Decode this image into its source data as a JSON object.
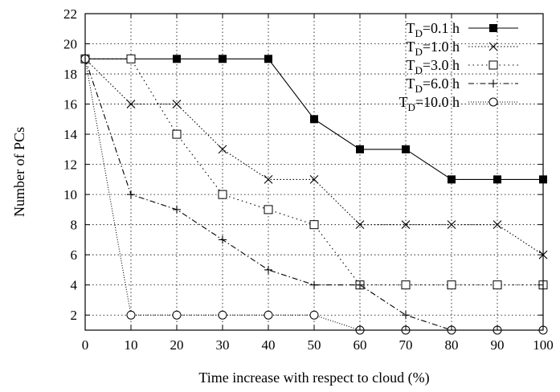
{
  "chart_data": {
    "type": "line",
    "xlabel": "Time increase with respect to cloud (%)",
    "ylabel": "Number of PCs",
    "x": [
      0,
      10,
      20,
      30,
      40,
      50,
      60,
      70,
      80,
      90,
      100
    ],
    "xticks": [
      "0",
      "10",
      "20",
      "30",
      "40",
      "50",
      "60",
      "70",
      "80",
      "90",
      "100"
    ],
    "yticks": [
      "2",
      "4",
      "6",
      "8",
      "10",
      "12",
      "14",
      "16",
      "18",
      "20",
      "22"
    ],
    "xlim": [
      0,
      100
    ],
    "ylim": [
      1,
      22
    ],
    "grid": true,
    "legend_position": "top-right",
    "series": [
      {
        "label_main": "T",
        "label_sub": "D",
        "label_rest": "=0.1 h",
        "marker": "filled-square",
        "dash": "solid",
        "values": [
          19,
          19,
          19,
          19,
          19,
          15,
          13,
          13,
          11,
          11,
          11
        ]
      },
      {
        "label_main": "T",
        "label_sub": "D",
        "label_rest": "=1.0 h",
        "marker": "x",
        "dash": "dotted",
        "values": [
          19,
          16,
          16,
          13,
          11,
          11,
          8,
          8,
          8,
          8,
          6
        ]
      },
      {
        "label_main": "T",
        "label_sub": "D",
        "label_rest": "=3.0 h",
        "marker": "open-square",
        "dash": "dotted-sparse",
        "values": [
          19,
          19,
          14,
          10,
          9,
          8,
          4,
          4,
          4,
          4,
          4
        ]
      },
      {
        "label_main": "T",
        "label_sub": "D",
        "label_rest": "=6.0 h",
        "marker": "plus",
        "dash": "dash-dot",
        "values": [
          19,
          10,
          9,
          7,
          5,
          4,
          4,
          2,
          1,
          1,
          1
        ]
      },
      {
        "label_main": "T",
        "label_sub": "D",
        "label_rest": "=10.0 h",
        "marker": "circle",
        "dash": "dotted-fine",
        "values": [
          19,
          2,
          2,
          2,
          2,
          2,
          1,
          1,
          1,
          1,
          1
        ]
      }
    ]
  }
}
